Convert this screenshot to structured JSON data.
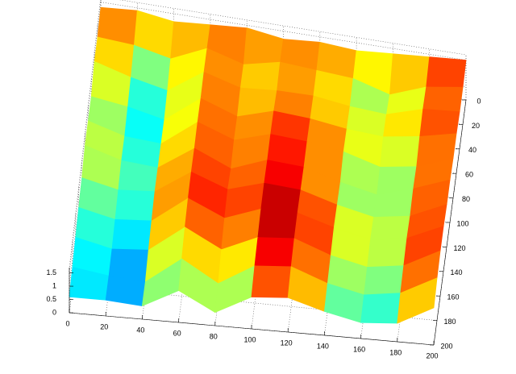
{
  "chart_data": {
    "type": "surface",
    "colormap": "jet",
    "x": [
      0,
      20,
      40,
      60,
      80,
      100,
      120,
      140,
      160,
      180,
      200
    ],
    "y": [
      0,
      20,
      40,
      60,
      80,
      100,
      120,
      140,
      160,
      180,
      200
    ],
    "z": [
      [
        1.3,
        1.4,
        1.2,
        1.3,
        1.4,
        1.2,
        1.3,
        1.2,
        1.3,
        1.4,
        1.5
      ],
      [
        1.2,
        1.1,
        0.8,
        1.4,
        1.0,
        1.3,
        1.2,
        1.1,
        0.7,
        1.2,
        1.4
      ],
      [
        1.3,
        0.9,
        0.6,
        1.5,
        1.1,
        1.2,
        1.2,
        1.0,
        0.9,
        1.3,
        1.4
      ],
      [
        1.0,
        0.8,
        0.5,
        1.5,
        1.0,
        1.4,
        1.3,
        1.1,
        1.0,
        1.2,
        1.5
      ],
      [
        1.1,
        0.7,
        0.6,
        1.6,
        1.1,
        1.5,
        1.4,
        1.2,
        0.8,
        1.0,
        1.5
      ],
      [
        1.2,
        0.8,
        0.7,
        1.6,
        1.0,
        1.5,
        1.4,
        1.0,
        0.7,
        1.1,
        1.6
      ],
      [
        1.0,
        0.7,
        0.8,
        1.7,
        1.2,
        1.6,
        1.5,
        1.1,
        0.8,
        1.0,
        1.6
      ],
      [
        0.9,
        0.6,
        0.7,
        1.7,
        1.1,
        1.6,
        1.6,
        1.2,
        0.9,
        1.1,
        1.7
      ],
      [
        0.8,
        0.5,
        0.6,
        1.6,
        0.9,
        1.5,
        1.6,
        1.1,
        0.8,
        1.0,
        1.7
      ],
      [
        0.7,
        0.5,
        0.4,
        1.4,
        0.6,
        1.4,
        1.5,
        1.0,
        0.7,
        0.9,
        1.6
      ],
      [
        0.6,
        0.6,
        0.5,
        1.2,
        0.5,
        1.2,
        1.3,
        0.9,
        0.6,
        0.7,
        1.4
      ]
    ],
    "xlim": [
      0,
      200
    ],
    "xticks": [
      0,
      20,
      40,
      60,
      80,
      100,
      120,
      140,
      160,
      180,
      200
    ],
    "ylim": [
      0,
      200
    ],
    "yticks": [
      0,
      20,
      40,
      60,
      80,
      100,
      120,
      140,
      160,
      180,
      200
    ],
    "zlim": [
      0,
      1.7
    ],
    "zticks": [
      0,
      0.5,
      1,
      1.5
    ],
    "grid": true
  }
}
